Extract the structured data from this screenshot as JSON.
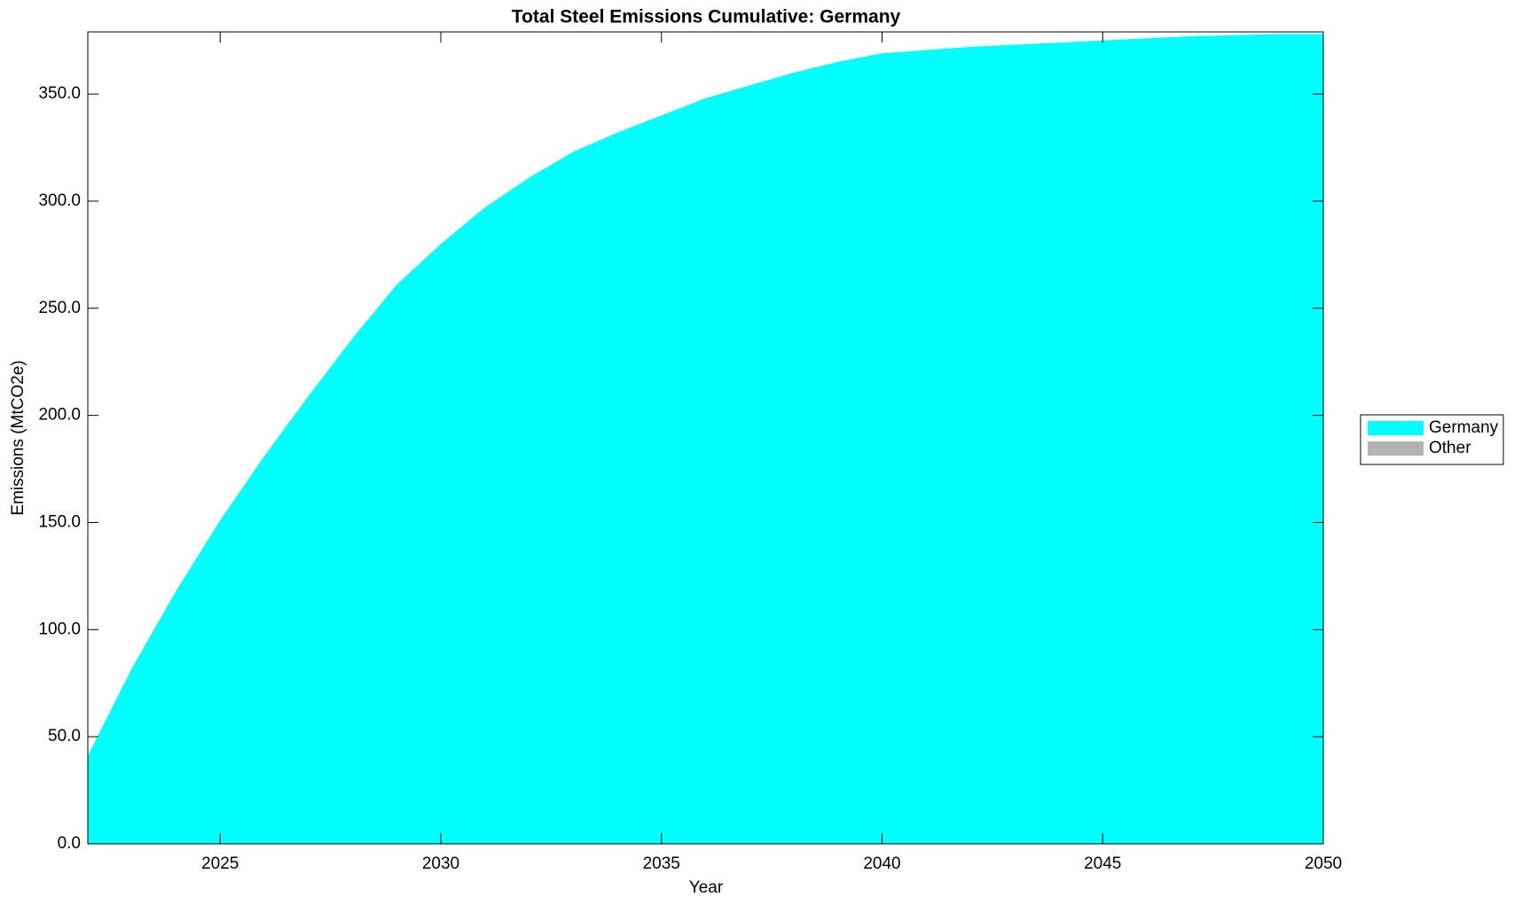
{
  "chart_data": {
    "type": "stacked-area",
    "title": "Total Steel Emissions Cumulative: Germany",
    "xlabel": "Year",
    "ylabel": "Emissions (MtCO2e)",
    "x": [
      2022,
      2023,
      2024,
      2025,
      2026,
      2027,
      2028,
      2029,
      2030,
      2031,
      2032,
      2033,
      2034,
      2035,
      2036,
      2037,
      2038,
      2039,
      2040,
      2041,
      2042,
      2043,
      2044,
      2045,
      2046,
      2047,
      2048,
      2049,
      2050
    ],
    "series": [
      {
        "name": "Germany",
        "color": "#00ffff",
        "values": [
          41,
          82,
          118,
          151,
          181,
          209,
          236,
          261,
          280,
          297,
          311,
          323,
          332,
          340,
          348,
          354,
          360,
          365,
          369,
          370.5,
          372,
          373,
          374,
          375,
          376,
          377,
          377.5,
          378,
          378
        ]
      },
      {
        "name": "Other",
        "color": "#b3b3b3",
        "values": [
          0,
          0,
          0,
          0,
          0,
          0,
          0,
          0,
          0,
          0,
          0,
          0,
          0,
          0,
          0,
          0,
          0,
          0,
          0,
          0,
          0,
          0,
          0,
          0,
          0,
          0,
          0,
          0,
          0
        ]
      }
    ],
    "xlim": [
      2022,
      2050
    ],
    "xticks": [
      2025,
      2030,
      2035,
      2040,
      2045,
      2050
    ],
    "ylim": [
      0,
      379
    ],
    "yticks": [
      {
        "value": 0,
        "label": "0.0"
      },
      {
        "value": 50,
        "label": "50.0"
      },
      {
        "value": 100,
        "label": "100.0"
      },
      {
        "value": 150,
        "label": "150.0"
      },
      {
        "value": 200,
        "label": "200.0"
      },
      {
        "value": 250,
        "label": "250.0"
      },
      {
        "value": 300,
        "label": "300.0"
      },
      {
        "value": 350,
        "label": "350.0"
      }
    ],
    "grid": false,
    "legend": "outside-right"
  }
}
